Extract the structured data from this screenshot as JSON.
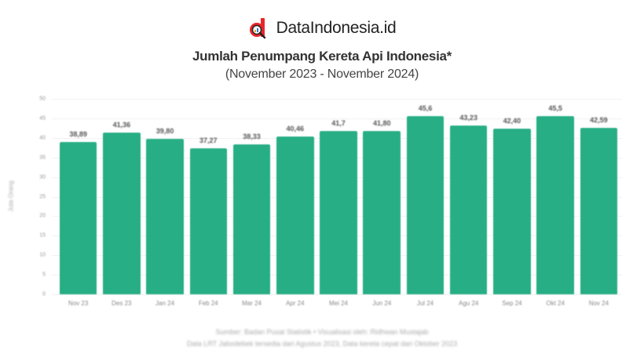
{
  "brand": {
    "name": "DataIndonesia.id",
    "logo_icon": "dataindonesia-logo-icon",
    "logo_color": "#e8262b"
  },
  "header": {
    "title": "Jumlah Penumpang Kereta Api Indonesia*",
    "subtitle": "(November 2023 - November 2024)"
  },
  "footer": {
    "source": "Sumber: Badan Pusat Statistik • Visualisasi oleh: Ridhwan Mustajab",
    "note": "Data LRT Jabodebek tersedia dari Agustus 2023, Data kereta cepat dari Oktober 2023"
  },
  "chart_data": {
    "type": "bar",
    "title": "Jumlah Penumpang Kereta Api Indonesia*",
    "subtitle": "(November 2023 - November 2024)",
    "xlabel": "",
    "ylabel": "Juta Orang",
    "ylim": [
      0,
      50
    ],
    "yticks": [
      0,
      5,
      10,
      15,
      20,
      25,
      30,
      35,
      40,
      45,
      50
    ],
    "grid": true,
    "legend": "none",
    "bar_color": "#27ae84",
    "categories": [
      "Nov 23",
      "Des 23",
      "Jan 24",
      "Feb 24",
      "Mar 24",
      "Apr 24",
      "Mei 24",
      "Jun 24",
      "Jul 24",
      "Agu 24",
      "Sep 24",
      "Okt 24",
      "Nov 24"
    ],
    "values": [
      38.89,
      41.36,
      39.8,
      37.27,
      38.33,
      40.46,
      41.7,
      41.8,
      45.6,
      43.23,
      42.4,
      45.5,
      42.59
    ],
    "value_labels": [
      "38,89",
      "41,36",
      "39,80",
      "37,27",
      "38,33",
      "40,46",
      "41,7",
      "41,80",
      "45,6",
      "43,23",
      "42,40",
      "45,5",
      "42,59"
    ]
  }
}
